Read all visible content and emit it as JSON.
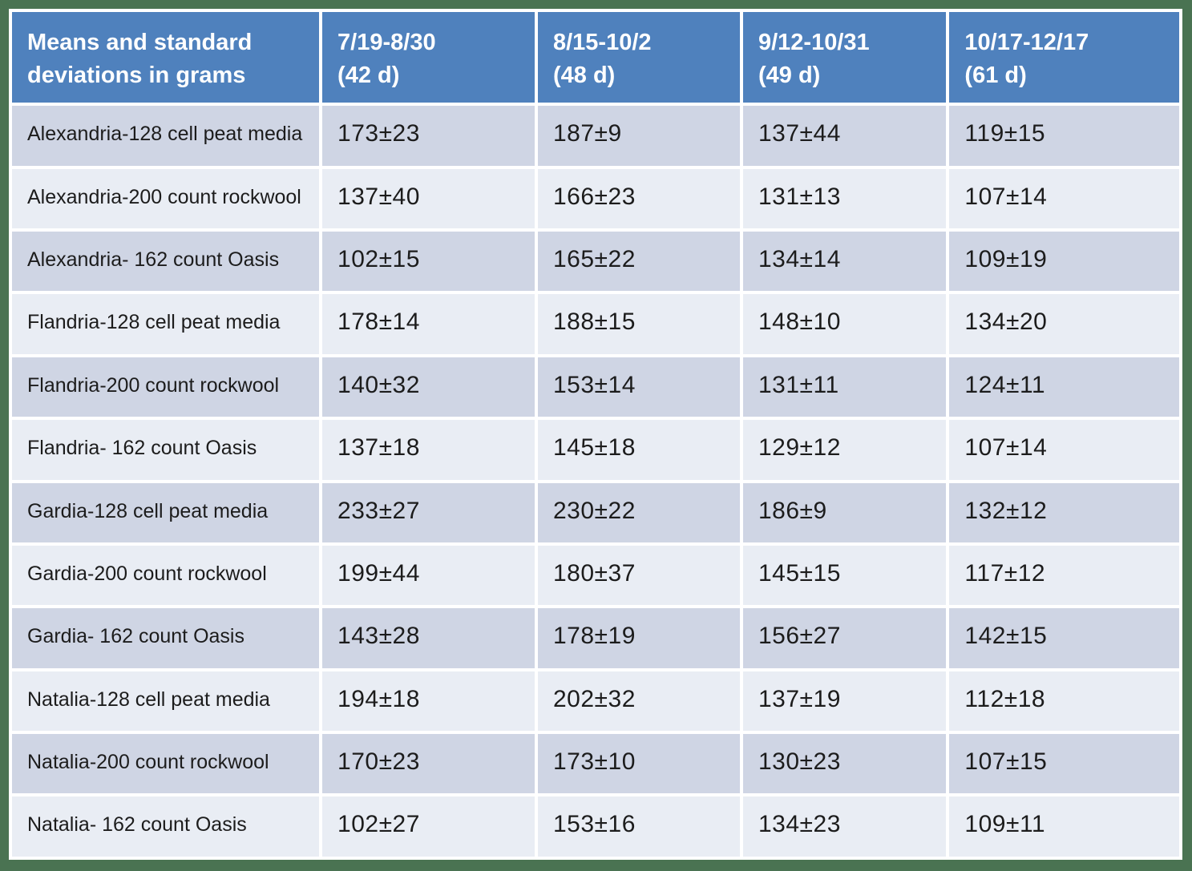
{
  "colors": {
    "outer_border_green": "#4a7352",
    "header_bg_blue": "#4f81bd",
    "header_text": "#ffffff",
    "band_dark": "#cfd5e4",
    "band_light": "#e9edf4",
    "body_text": "#1c1c1c",
    "gridline_white": "#ffffff"
  },
  "table": {
    "header": [
      "Means and standard\ndeviations in grams",
      "7/19-8/30\n(42 d)",
      "8/15-10/2\n(48 d)",
      "9/12-10/31\n(49 d)",
      "10/17-12/17\n (61 d)"
    ],
    "rows": [
      {
        "label": "Alexandria-128 cell peat media",
        "values": [
          "173±23",
          "187±9",
          "137±44",
          "119±15"
        ]
      },
      {
        "label": "Alexandria-200 count rockwool",
        "values": [
          "137±40",
          "166±23",
          "131±13",
          "107±14"
        ]
      },
      {
        "label": "Alexandria- 162 count Oasis",
        "values": [
          "102±15",
          "165±22",
          "134±14",
          "109±19"
        ]
      },
      {
        "label": "Flandria-128 cell peat media",
        "values": [
          "178±14",
          "188±15",
          "148±10",
          "134±20"
        ]
      },
      {
        "label": "Flandria-200 count rockwool",
        "values": [
          "140±32",
          "153±14",
          "131±11",
          "124±11"
        ]
      },
      {
        "label": "Flandria- 162 count Oasis",
        "values": [
          "137±18",
          "145±18",
          "129±12",
          "107±14"
        ]
      },
      {
        "label": "Gardia-128 cell peat media",
        "values": [
          "233±27",
          "230±22",
          "186±9",
          "132±12"
        ]
      },
      {
        "label": "Gardia-200 count rockwool",
        "values": [
          "199±44",
          "180±37",
          "145±15",
          "117±12"
        ]
      },
      {
        "label": "Gardia- 162 count Oasis",
        "values": [
          "143±28",
          "178±19",
          "156±27",
          "142±15"
        ]
      },
      {
        "label": "Natalia-128 cell peat media",
        "values": [
          "194±18",
          "202±32",
          "137±19",
          "112±18"
        ]
      },
      {
        "label": "Natalia-200 count rockwool",
        "values": [
          "170±23",
          "173±10",
          "130±23",
          "107±15"
        ]
      },
      {
        "label": "Natalia- 162 count Oasis",
        "values": [
          "102±27",
          "153±16",
          "134±23",
          "109±11"
        ]
      }
    ]
  },
  "chart_data": {
    "type": "table",
    "title": "Means and standard deviations in grams",
    "columns": [
      "Means and standard deviations in grams",
      "7/19-8/30 (42 d)",
      "8/15-10/2 (48 d)",
      "9/12-10/31 (49 d)",
      "10/17-12/17 (61 d)"
    ],
    "harvest_periods_days": [
      42,
      48,
      49,
      61
    ],
    "rows": [
      {
        "label": "Alexandria-128 cell peat media",
        "means": [
          173,
          187,
          137,
          119
        ],
        "sds": [
          23,
          9,
          44,
          15
        ]
      },
      {
        "label": "Alexandria-200 count rockwool",
        "means": [
          137,
          166,
          131,
          107
        ],
        "sds": [
          40,
          23,
          13,
          14
        ]
      },
      {
        "label": "Alexandria- 162 count Oasis",
        "means": [
          102,
          165,
          134,
          109
        ],
        "sds": [
          15,
          22,
          14,
          19
        ]
      },
      {
        "label": "Flandria-128 cell peat media",
        "means": [
          178,
          188,
          148,
          134
        ],
        "sds": [
          14,
          15,
          10,
          20
        ]
      },
      {
        "label": "Flandria-200 count rockwool",
        "means": [
          140,
          153,
          131,
          124
        ],
        "sds": [
          32,
          14,
          11,
          11
        ]
      },
      {
        "label": "Flandria- 162 count Oasis",
        "means": [
          137,
          145,
          129,
          107
        ],
        "sds": [
          18,
          18,
          12,
          14
        ]
      },
      {
        "label": "Gardia-128 cell peat media",
        "means": [
          233,
          230,
          186,
          132
        ],
        "sds": [
          27,
          22,
          9,
          12
        ]
      },
      {
        "label": "Gardia-200 count rockwool",
        "means": [
          199,
          180,
          145,
          117
        ],
        "sds": [
          44,
          37,
          15,
          12
        ]
      },
      {
        "label": "Gardia- 162 count Oasis",
        "means": [
          143,
          178,
          156,
          142
        ],
        "sds": [
          28,
          19,
          27,
          15
        ]
      },
      {
        "label": "Natalia-128 cell peat media",
        "means": [
          194,
          202,
          137,
          112
        ],
        "sds": [
          18,
          32,
          19,
          18
        ]
      },
      {
        "label": "Natalia-200 count rockwool",
        "means": [
          170,
          173,
          130,
          107
        ],
        "sds": [
          23,
          10,
          23,
          15
        ]
      },
      {
        "label": "Natalia- 162 count Oasis",
        "means": [
          102,
          153,
          134,
          109
        ],
        "sds": [
          27,
          16,
          23,
          11
        ]
      }
    ]
  }
}
